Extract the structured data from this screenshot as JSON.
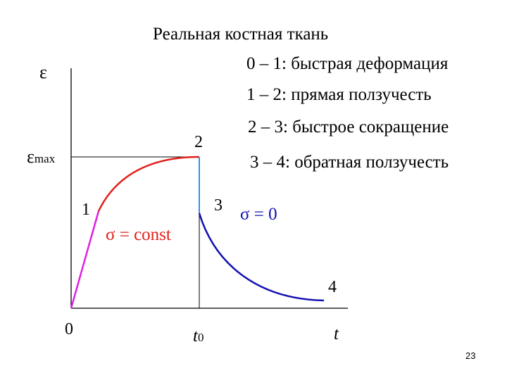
{
  "title": "Реальная костная ткань",
  "legend": [
    "0 – 1: быстрая деформация",
    "1 – 2: прямая ползучесть",
    "2 – 3: быстрое сокращение",
    "3 – 4: обратная ползучесть"
  ],
  "axes": {
    "y_label": "ε",
    "y_max_label": {
      "symbol": "ε",
      "subscript": "max"
    },
    "x_label": "t",
    "t0_label": {
      "symbol": "t",
      "subscript": "0"
    }
  },
  "points": {
    "p0": "0",
    "p1": "1",
    "p2": "2",
    "p3": "3",
    "p4": "4"
  },
  "annotations": {
    "sigma_const": "σ = const",
    "sigma_zero": "σ = 0"
  },
  "colors": {
    "segment_0_1": "#e020e0",
    "segment_1_2": "#e0201b",
    "segment_2_3": "#3a8fd6",
    "segment_3_4": "#1010b0",
    "axes": "#000000"
  },
  "page_number": "23"
}
